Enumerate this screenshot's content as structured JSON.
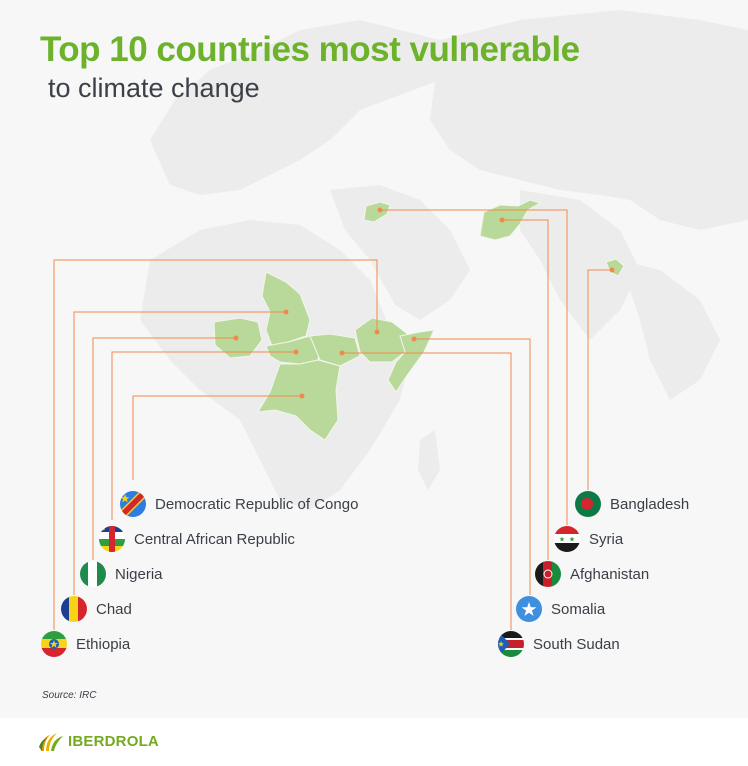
{
  "title": {
    "line1": "Top 10 countries most vulnerable",
    "line2": "to climate change"
  },
  "colors": {
    "title_green": "#6cb22b",
    "highlight_green": "#b9d99a",
    "connector_orange": "#f08a4b",
    "world_map_gray": "#ececec"
  },
  "left_countries": [
    {
      "name": "Democratic Republic of Congo",
      "flag": "flag-dr-congo-icon"
    },
    {
      "name": "Central African Republic",
      "flag": "flag-central-african-republic-icon"
    },
    {
      "name": "Nigeria",
      "flag": "flag-nigeria-icon"
    },
    {
      "name": "Chad",
      "flag": "flag-chad-icon"
    },
    {
      "name": "Ethiopia",
      "flag": "flag-ethiopia-icon"
    }
  ],
  "right_countries": [
    {
      "name": "Bangladesh",
      "flag": "flag-bangladesh-icon"
    },
    {
      "name": "Syria",
      "flag": "flag-syria-icon"
    },
    {
      "name": "Afghanistan",
      "flag": "flag-afghanistan-icon"
    },
    {
      "name": "Somalia",
      "flag": "flag-somalia-icon"
    },
    {
      "name": "South Sudan",
      "flag": "flag-south-sudan-icon"
    }
  ],
  "source": "Source: IRC",
  "brand": {
    "name": "IBERDROLA",
    "icon": "iberdrola-logo-icon"
  }
}
